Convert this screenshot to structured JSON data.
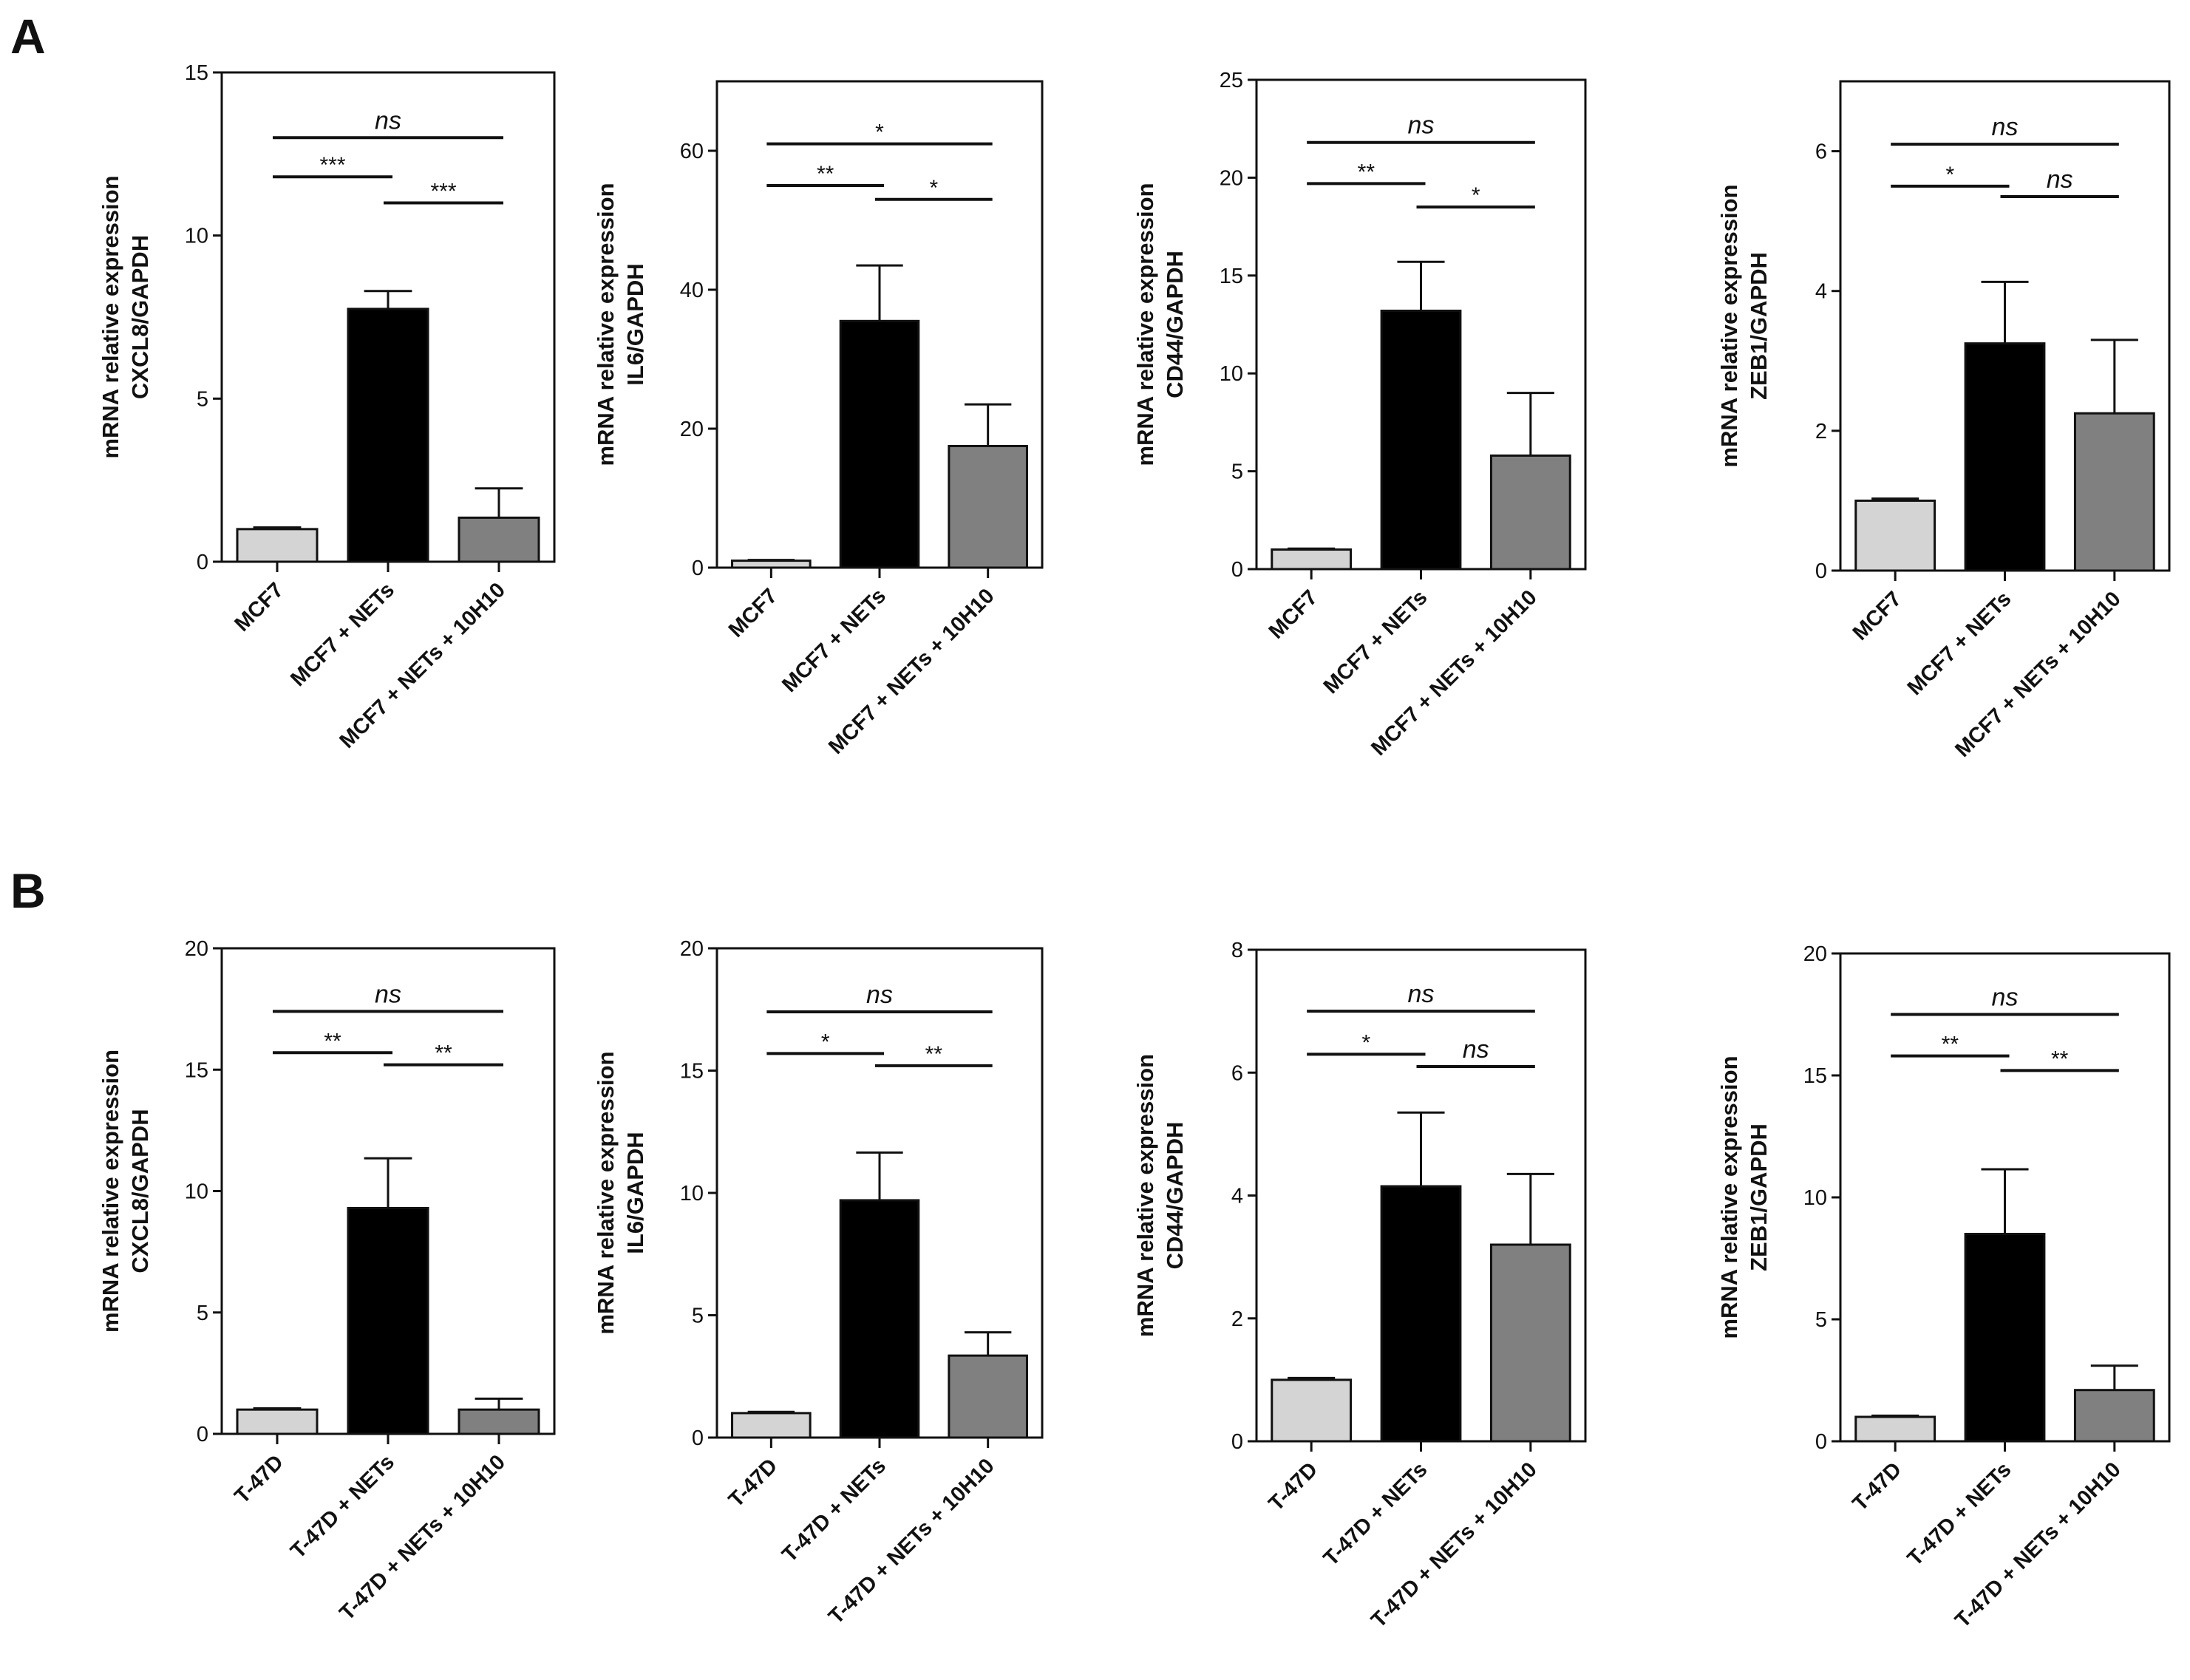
{
  "panel_labels": [
    "A",
    "B"
  ],
  "chart_data": [
    {
      "type": "bar",
      "panel": "A",
      "panel_index": 0,
      "ylabel_line1": "mRNA relative expression",
      "ylabel_line2": "CXCL8/GAPDH",
      "ylim": [
        0,
        15
      ],
      "yticks": [
        0,
        5,
        10,
        15
      ],
      "ytick_labels": [
        "0",
        "5",
        "10",
        "15"
      ],
      "categories": [
        "MCF7",
        "MCF7 + NETs",
        "MCF7 + NETs + 10H10"
      ],
      "values": [
        1.0,
        7.75,
        1.35
      ],
      "errors": [
        0.05,
        0.55,
        0.9
      ],
      "bar_colors": [
        "#d4d4d4",
        "#000000",
        "#808080"
      ],
      "significance": [
        {
          "from": 0,
          "to": 2,
          "level": 13.0,
          "label": "ns"
        },
        {
          "from": 0,
          "to": 1,
          "level": 11.8,
          "label": "***"
        },
        {
          "from": 1,
          "to": 2,
          "level": 11.0,
          "label": "***"
        }
      ]
    },
    {
      "type": "bar",
      "panel": "A",
      "panel_index": 1,
      "ylabel_line1": "mRNA relative expression",
      "ylabel_line2": "IL6/GAPDH",
      "ylim": [
        0,
        70
      ],
      "yticks": [
        0,
        20,
        40,
        60
      ],
      "ytick_labels": [
        "0",
        "20",
        "40",
        "60"
      ],
      "categories": [
        "MCF7",
        "MCF7 + NETs",
        "MCF7 + NETs + 10H10"
      ],
      "values": [
        1.0,
        35.5,
        17.5
      ],
      "errors": [
        0.1,
        8.0,
        6.0
      ],
      "bar_colors": [
        "#d4d4d4",
        "#000000",
        "#808080"
      ],
      "significance": [
        {
          "from": 0,
          "to": 2,
          "level": 61.0,
          "label": "*"
        },
        {
          "from": 0,
          "to": 1,
          "level": 55.0,
          "label": "**"
        },
        {
          "from": 1,
          "to": 2,
          "level": 53.0,
          "label": "*"
        }
      ]
    },
    {
      "type": "bar",
      "panel": "A",
      "panel_index": 2,
      "ylabel_line1": "mRNA relative expression",
      "ylabel_line2": "CD44/GAPDH",
      "ylim": [
        0,
        25
      ],
      "yticks": [
        0,
        5,
        10,
        15,
        20,
        25
      ],
      "ytick_labels": [
        "0",
        "5",
        "10",
        "15",
        "20",
        "25"
      ],
      "categories": [
        "MCF7",
        "MCF7 + NETs",
        "MCF7 + NETs + 10H10"
      ],
      "values": [
        1.0,
        13.2,
        5.8
      ],
      "errors": [
        0.05,
        2.5,
        3.2
      ],
      "bar_colors": [
        "#d4d4d4",
        "#000000",
        "#808080"
      ],
      "significance": [
        {
          "from": 0,
          "to": 2,
          "level": 21.8,
          "label": "ns"
        },
        {
          "from": 0,
          "to": 1,
          "level": 19.7,
          "label": "**"
        },
        {
          "from": 1,
          "to": 2,
          "level": 18.5,
          "label": "*"
        }
      ]
    },
    {
      "type": "bar",
      "panel": "A",
      "panel_index": 3,
      "ylabel_line1": "mRNA relative expression",
      "ylabel_line2": "ZEB1/GAPDH",
      "ylim": [
        0,
        7
      ],
      "yticks": [
        0,
        2,
        4,
        6
      ],
      "ytick_labels": [
        "0",
        "2",
        "4",
        "6"
      ],
      "categories": [
        "MCF7",
        "MCF7 + NETs",
        "MCF7 + NETs + 10H10"
      ],
      "values": [
        1.0,
        3.25,
        2.25
      ],
      "errors": [
        0.03,
        0.88,
        1.05
      ],
      "bar_colors": [
        "#d4d4d4",
        "#000000",
        "#808080"
      ],
      "significance": [
        {
          "from": 0,
          "to": 2,
          "level": 6.1,
          "label": "ns"
        },
        {
          "from": 0,
          "to": 1,
          "level": 5.5,
          "label": "*"
        },
        {
          "from": 1,
          "to": 2,
          "level": 5.35,
          "label": "ns"
        }
      ]
    },
    {
      "type": "bar",
      "panel": "B",
      "panel_index": 4,
      "ylabel_line1": "mRNA relative expression",
      "ylabel_line2": "CXCL8/GAPDH",
      "ylim": [
        0,
        20
      ],
      "yticks": [
        0,
        5,
        10,
        15,
        20
      ],
      "ytick_labels": [
        "0",
        "5",
        "10",
        "15",
        "20"
      ],
      "categories": [
        "T-47D",
        "T-47D + NETs",
        "T-47D + NETs + 10H10"
      ],
      "values": [
        1.0,
        9.3,
        1.0
      ],
      "errors": [
        0.05,
        2.05,
        0.45
      ],
      "bar_colors": [
        "#d4d4d4",
        "#000000",
        "#808080"
      ],
      "significance": [
        {
          "from": 0,
          "to": 2,
          "level": 17.4,
          "label": "ns"
        },
        {
          "from": 0,
          "to": 1,
          "level": 15.7,
          "label": "**"
        },
        {
          "from": 1,
          "to": 2,
          "level": 15.2,
          "label": "**"
        }
      ]
    },
    {
      "type": "bar",
      "panel": "B",
      "panel_index": 5,
      "ylabel_line1": "mRNA relative expression",
      "ylabel_line2": "IL6/GAPDH",
      "ylim": [
        0,
        20
      ],
      "yticks": [
        0,
        5,
        10,
        15,
        20
      ],
      "ytick_labels": [
        "0",
        "5",
        "10",
        "15",
        "20"
      ],
      "categories": [
        "T-47D",
        "T-47D + NETs",
        "T-47D + NETs + 10H10"
      ],
      "values": [
        1.0,
        9.7,
        3.35
      ],
      "errors": [
        0.05,
        1.95,
        0.95
      ],
      "bar_colors": [
        "#d4d4d4",
        "#000000",
        "#808080"
      ],
      "significance": [
        {
          "from": 0,
          "to": 2,
          "level": 17.4,
          "label": "ns"
        },
        {
          "from": 0,
          "to": 1,
          "level": 15.7,
          "label": "*"
        },
        {
          "from": 1,
          "to": 2,
          "level": 15.2,
          "label": "**"
        }
      ]
    },
    {
      "type": "bar",
      "panel": "B",
      "panel_index": 6,
      "ylabel_line1": "mRNA relative expression",
      "ylabel_line2": "CD44/GAPDH",
      "ylim": [
        0,
        8
      ],
      "yticks": [
        0,
        2,
        4,
        6,
        8
      ],
      "ytick_labels": [
        "0",
        "2",
        "4",
        "6",
        "8"
      ],
      "categories": [
        "T-47D",
        "T-47D + NETs",
        "T-47D + NETs + 10H10"
      ],
      "values": [
        1.0,
        4.15,
        3.2
      ],
      "errors": [
        0.03,
        1.2,
        1.15
      ],
      "bar_colors": [
        "#d4d4d4",
        "#000000",
        "#808080"
      ],
      "significance": [
        {
          "from": 0,
          "to": 2,
          "level": 7.0,
          "label": "ns"
        },
        {
          "from": 0,
          "to": 1,
          "level": 6.3,
          "label": "*"
        },
        {
          "from": 1,
          "to": 2,
          "level": 6.1,
          "label": "ns"
        }
      ]
    },
    {
      "type": "bar",
      "panel": "B",
      "panel_index": 7,
      "ylabel_line1": "mRNA relative expression",
      "ylabel_line2": "ZEB1/GAPDH",
      "ylim": [
        0,
        20
      ],
      "yticks": [
        0,
        5,
        10,
        15,
        20
      ],
      "ytick_labels": [
        "0",
        "5",
        "10",
        "15",
        "20"
      ],
      "categories": [
        "T-47D",
        "T-47D + NETs",
        "T-47D + NETs + 10H10"
      ],
      "values": [
        1.0,
        8.5,
        2.1
      ],
      "errors": [
        0.05,
        2.65,
        1.0
      ],
      "bar_colors": [
        "#d4d4d4",
        "#000000",
        "#808080"
      ],
      "significance": [
        {
          "from": 0,
          "to": 2,
          "level": 17.5,
          "label": "ns"
        },
        {
          "from": 0,
          "to": 1,
          "level": 15.8,
          "label": "**"
        },
        {
          "from": 1,
          "to": 2,
          "level": 15.2,
          "label": "**"
        }
      ]
    }
  ]
}
